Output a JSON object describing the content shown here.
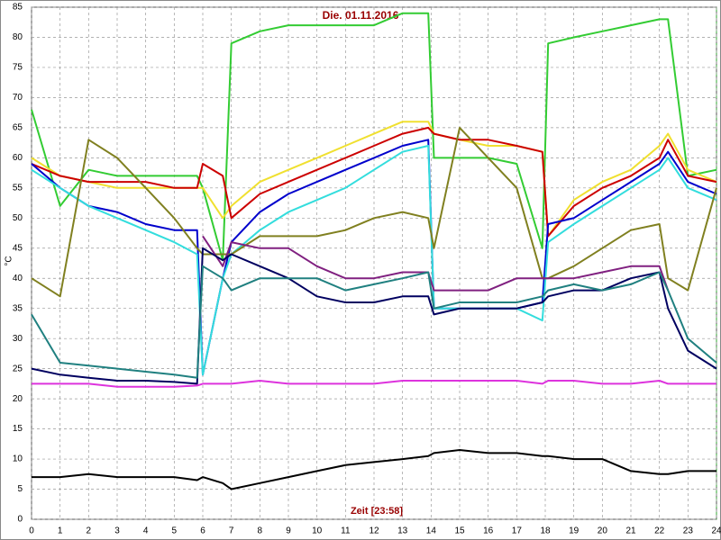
{
  "chart_data": {
    "type": "line",
    "title": "Die. 01.11.2016",
    "xlabel": "Zeit [23:58]",
    "ylabel": "°C",
    "x": [
      0,
      1,
      2,
      3,
      4,
      5,
      5.8,
      6,
      6.7,
      7,
      8,
      9,
      10,
      11,
      12,
      13,
      13.9,
      14.1,
      15,
      16,
      17,
      17.9,
      18.1,
      19,
      20,
      21,
      22,
      22.3,
      23,
      24
    ],
    "xlim": [
      0,
      24
    ],
    "ylim": [
      0,
      85
    ],
    "xticks": [
      0,
      1,
      2,
      3,
      4,
      5,
      6,
      7,
      8,
      9,
      10,
      11,
      12,
      13,
      14,
      15,
      16,
      17,
      18,
      19,
      20,
      21,
      22,
      23,
      24
    ],
    "yticks": [
      0,
      5,
      10,
      15,
      20,
      25,
      30,
      35,
      40,
      45,
      50,
      55,
      60,
      65,
      70,
      75,
      80,
      85
    ],
    "grid": true,
    "series": [
      {
        "color": "#33cc33",
        "values": [
          68,
          52,
          58,
          57,
          57,
          57,
          57,
          55,
          43,
          79,
          81,
          82,
          82,
          82,
          82,
          84,
          84,
          60,
          60,
          60,
          59,
          45,
          79,
          80,
          81,
          82,
          83,
          83,
          57,
          58
        ]
      },
      {
        "color": "#f0e030",
        "values": [
          60,
          57,
          56,
          55,
          55,
          55,
          55,
          55,
          50,
          52,
          56,
          58,
          60,
          62,
          64,
          66,
          66,
          64,
          63,
          62,
          62,
          61,
          47,
          53,
          56,
          58,
          62,
          64,
          58,
          56
        ]
      },
      {
        "color": "#cc0000",
        "values": [
          59,
          57,
          56,
          56,
          56,
          55,
          55,
          59,
          57,
          50,
          54,
          56,
          58,
          60,
          62,
          64,
          65,
          64,
          63,
          63,
          62,
          61,
          47,
          52,
          55,
          57,
          60,
          63,
          57,
          56
        ]
      },
      {
        "color": "#0000cc",
        "values": [
          59,
          55,
          52,
          51,
          49,
          48,
          48,
          24,
          40,
          46,
          51,
          54,
          56,
          58,
          60,
          62,
          63,
          35,
          35,
          35,
          35,
          36,
          49,
          50,
          53,
          56,
          59,
          61,
          56,
          54
        ]
      },
      {
        "color": "#33dddd",
        "values": [
          58,
          55,
          52,
          50,
          48,
          46,
          44,
          24,
          40,
          44,
          48,
          51,
          53,
          55,
          58,
          61,
          62,
          35,
          35,
          35,
          35,
          33,
          46,
          49,
          52,
          55,
          58,
          60,
          55,
          53
        ]
      },
      {
        "color": "#808020",
        "values": [
          40,
          37,
          63,
          60,
          55,
          50,
          45,
          44,
          44,
          44,
          47,
          47,
          47,
          48,
          50,
          51,
          50,
          45,
          65,
          60,
          55,
          40,
          40,
          42,
          45,
          48,
          49,
          40,
          38,
          55
        ]
      },
      {
        "color": "#802080",
        "values": [
          null,
          null,
          null,
          null,
          null,
          null,
          null,
          47,
          42,
          46,
          45,
          45,
          42,
          40,
          40,
          41,
          41,
          38,
          38,
          38,
          40,
          40,
          40,
          40,
          41,
          42,
          42,
          38,
          null,
          null
        ]
      },
      {
        "color": "#000060",
        "values": [
          25,
          24,
          23.5,
          23,
          23,
          22.8,
          22.5,
          45,
          43,
          44,
          42,
          40,
          37,
          36,
          36,
          37,
          37,
          34,
          35,
          35,
          35,
          36,
          37,
          38,
          38,
          40,
          41,
          35,
          28,
          25
        ]
      },
      {
        "color": "#208080",
        "values": [
          34,
          26,
          25.5,
          25,
          24.5,
          24,
          23.5,
          42,
          40,
          38,
          40,
          40,
          40,
          38,
          39,
          40,
          41,
          35,
          36,
          36,
          36,
          37,
          38,
          39,
          38,
          39,
          41,
          38,
          30,
          26
        ]
      },
      {
        "color": "#dd33dd",
        "values": [
          22.5,
          22.5,
          22.5,
          22,
          22,
          22,
          22.2,
          22.5,
          22.5,
          22.5,
          23,
          22.5,
          22.5,
          22.5,
          22.5,
          23,
          23,
          23,
          23,
          23,
          23,
          22.5,
          23,
          23,
          22.5,
          22.5,
          23,
          22.5,
          22.5,
          22.5
        ]
      },
      {
        "color": "#000000",
        "values": [
          7,
          7,
          7.5,
          7,
          7,
          7,
          6.5,
          7,
          6,
          5,
          6,
          7,
          8,
          9,
          9.5,
          10,
          10.5,
          11,
          11.5,
          11,
          11,
          10.5,
          10.5,
          10,
          10,
          8,
          7.5,
          7.5,
          8,
          8
        ]
      }
    ]
  }
}
